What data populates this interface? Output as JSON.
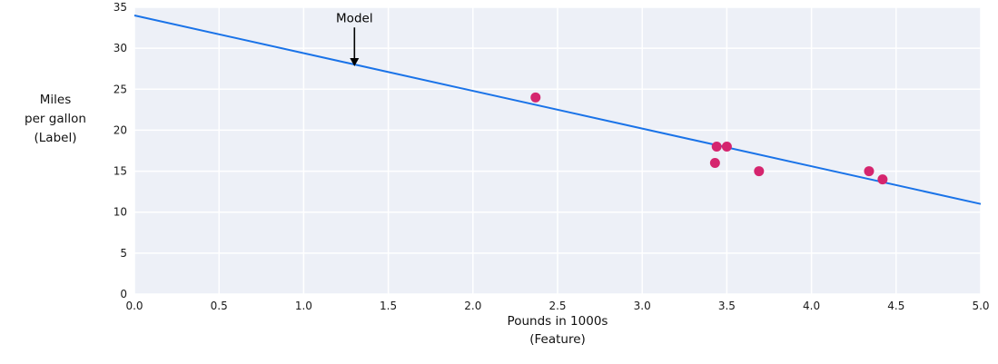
{
  "chart_data": {
    "type": "scatter",
    "title": "",
    "xlabel": "Pounds in 1000s\n(Feature)",
    "ylabel": "Miles\nper gallon\n(Label)",
    "xlim": [
      0,
      5
    ],
    "ylim": [
      0,
      35
    ],
    "xticks": {
      "values": [
        0,
        0.5,
        1.0,
        1.5,
        2.0,
        2.5,
        3.0,
        3.5,
        4.0,
        4.5,
        5.0
      ],
      "labels": [
        "0.0",
        "0.5",
        "1.0",
        "1.5",
        "2.0",
        "2.5",
        "3.0",
        "3.5",
        "4.0",
        "4.5",
        "5.0"
      ]
    },
    "yticks": {
      "values": [
        0,
        5,
        10,
        15,
        20,
        25,
        30,
        35
      ],
      "labels": [
        "0",
        "5",
        "10",
        "15",
        "20",
        "25",
        "30",
        "35"
      ]
    },
    "points": [
      {
        "x": 2.37,
        "y": 24
      },
      {
        "x": 3.44,
        "y": 18
      },
      {
        "x": 3.5,
        "y": 18
      },
      {
        "x": 3.43,
        "y": 16
      },
      {
        "x": 3.69,
        "y": 15
      },
      {
        "x": 4.34,
        "y": 15
      },
      {
        "x": 4.42,
        "y": 14
      }
    ],
    "line": {
      "x": [
        0,
        5
      ],
      "y": [
        34,
        11
      ],
      "color": "#1a73e8",
      "width": 2
    },
    "annotation": {
      "text": "Model",
      "text_x": 1.3,
      "text_y": 33.2,
      "arrow_tip_x": 1.3,
      "arrow_tip_y": 27.8,
      "color": "#000000"
    },
    "style": {
      "point_color": "#d5256e",
      "point_radius": 5.5,
      "plot_bg": "#edf0f7",
      "grid_color": "#ffffff",
      "tick_color": "#1a1a1a",
      "grid": true,
      "legend": "none"
    }
  }
}
